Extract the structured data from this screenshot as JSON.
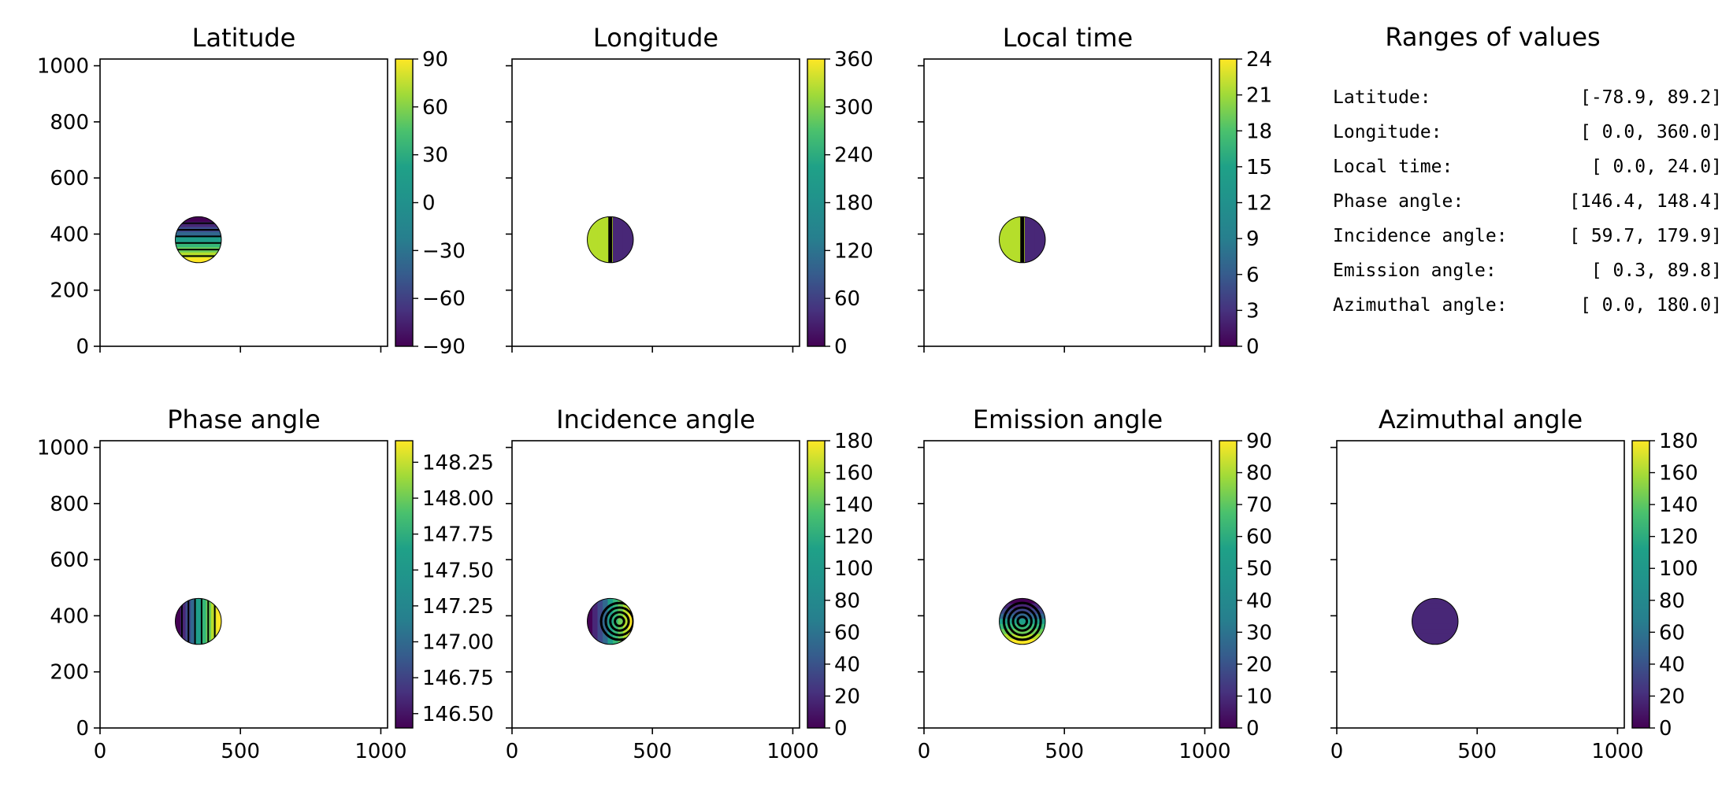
{
  "chart_data": [
    {
      "type": "heatmap",
      "title": "Latitude",
      "colorbar_ticks": [
        "90",
        "60",
        "30",
        "0",
        "−30",
        "−60",
        "−90"
      ],
      "colorbar_range": [
        -90,
        90
      ],
      "xlim": [
        0,
        1024
      ],
      "ylim": [
        0,
        1024
      ],
      "xticks": [
        0,
        500,
        1000
      ],
      "yticks": [
        "0",
        "200",
        "400",
        "600",
        "800",
        "1000"
      ],
      "x_tick_labels_shown": false,
      "y_tick_labels_shown": true,
      "disk_center": [
        350,
        380
      ],
      "disk_radius": 82
    },
    {
      "type": "heatmap",
      "title": "Longitude",
      "colorbar_ticks": [
        "360",
        "300",
        "240",
        "180",
        "120",
        "60",
        "0"
      ],
      "colorbar_range": [
        0,
        360
      ],
      "xlim": [
        0,
        1024
      ],
      "ylim": [
        0,
        1024
      ],
      "xticks": [
        0,
        500,
        1000
      ],
      "yticks": [
        "0",
        "200",
        "400",
        "600",
        "800",
        "1000"
      ],
      "x_tick_labels_shown": false,
      "y_tick_labels_shown": false,
      "disk_center": [
        350,
        380
      ],
      "disk_radius": 82
    },
    {
      "type": "heatmap",
      "title": "Local time",
      "colorbar_ticks": [
        "24",
        "21",
        "18",
        "15",
        "12",
        "9",
        "6",
        "3",
        "0"
      ],
      "colorbar_range": [
        0,
        24
      ],
      "xlim": [
        0,
        1024
      ],
      "ylim": [
        0,
        1024
      ],
      "xticks": [
        0,
        500,
        1000
      ],
      "yticks": [
        "0",
        "200",
        "400",
        "600",
        "800",
        "1000"
      ],
      "x_tick_labels_shown": false,
      "y_tick_labels_shown": false,
      "disk_center": [
        350,
        380
      ],
      "disk_radius": 82
    },
    {
      "type": "heatmap",
      "title": "Phase angle",
      "colorbar_ticks": [
        "148.25",
        "148.00",
        "147.75",
        "147.50",
        "147.25",
        "147.00",
        "146.75",
        "146.50"
      ],
      "colorbar_range": [
        146.4,
        148.4
      ],
      "xlim": [
        0,
        1024
      ],
      "ylim": [
        0,
        1024
      ],
      "xticks": [
        "0",
        "500",
        "1000"
      ],
      "yticks": [
        "0",
        "200",
        "400",
        "600",
        "800",
        "1000"
      ],
      "x_tick_labels_shown": true,
      "y_tick_labels_shown": true,
      "disk_center": [
        350,
        380
      ],
      "disk_radius": 82
    },
    {
      "type": "heatmap",
      "title": "Incidence angle",
      "colorbar_ticks": [
        "180",
        "160",
        "140",
        "120",
        "100",
        "80",
        "60",
        "40",
        "20",
        "0"
      ],
      "colorbar_range": [
        0,
        180
      ],
      "xlim": [
        0,
        1024
      ],
      "ylim": [
        0,
        1024
      ],
      "xticks": [
        "0",
        "500",
        "1000"
      ],
      "yticks": [
        "0",
        "200",
        "400",
        "600",
        "800",
        "1000"
      ],
      "x_tick_labels_shown": true,
      "y_tick_labels_shown": false,
      "disk_center": [
        350,
        380
      ],
      "disk_radius": 82
    },
    {
      "type": "heatmap",
      "title": "Emission angle",
      "colorbar_ticks": [
        "90",
        "80",
        "70",
        "60",
        "50",
        "40",
        "30",
        "20",
        "10",
        "0"
      ],
      "colorbar_range": [
        0,
        90
      ],
      "xlim": [
        0,
        1024
      ],
      "ylim": [
        0,
        1024
      ],
      "xticks": [
        "0",
        "500",
        "1000"
      ],
      "yticks": [
        "0",
        "200",
        "400",
        "600",
        "800",
        "1000"
      ],
      "x_tick_labels_shown": true,
      "y_tick_labels_shown": false,
      "disk_center": [
        350,
        380
      ],
      "disk_radius": 82
    },
    {
      "type": "heatmap",
      "title": "Azimuthal angle",
      "colorbar_ticks": [
        "180",
        "160",
        "140",
        "120",
        "100",
        "80",
        "60",
        "40",
        "20",
        "0"
      ],
      "colorbar_range": [
        0,
        180
      ],
      "xlim": [
        0,
        1024
      ],
      "ylim": [
        0,
        1024
      ],
      "xticks": [
        "0",
        "500",
        "1000"
      ],
      "yticks": [
        "0",
        "200",
        "400",
        "600",
        "800",
        "1000"
      ],
      "x_tick_labels_shown": true,
      "y_tick_labels_shown": false,
      "disk_center": [
        350,
        380
      ],
      "disk_radius": 82
    }
  ],
  "ranges_panel": {
    "title": "Ranges of values",
    "rows": [
      {
        "name": "Latitude:",
        "range": "[-78.9,  89.2]"
      },
      {
        "name": "Longitude:",
        "range": "[  0.0, 360.0]"
      },
      {
        "name": "Local time:",
        "range": "[  0.0,  24.0]"
      },
      {
        "name": "Phase angle:",
        "range": "[146.4, 148.4]"
      },
      {
        "name": "Incidence angle:",
        "range": "[ 59.7, 179.9]"
      },
      {
        "name": "Emission angle:",
        "range": "[  0.3,  89.8]"
      },
      {
        "name": "Azimuthal angle:",
        "range": "[  0.0, 180.0]"
      }
    ]
  },
  "colormap": "viridis",
  "colors": {
    "axis": "#000000",
    "contour_line": "#000000",
    "contour_label": "#d9d9d9",
    "background": "#ffffff"
  }
}
